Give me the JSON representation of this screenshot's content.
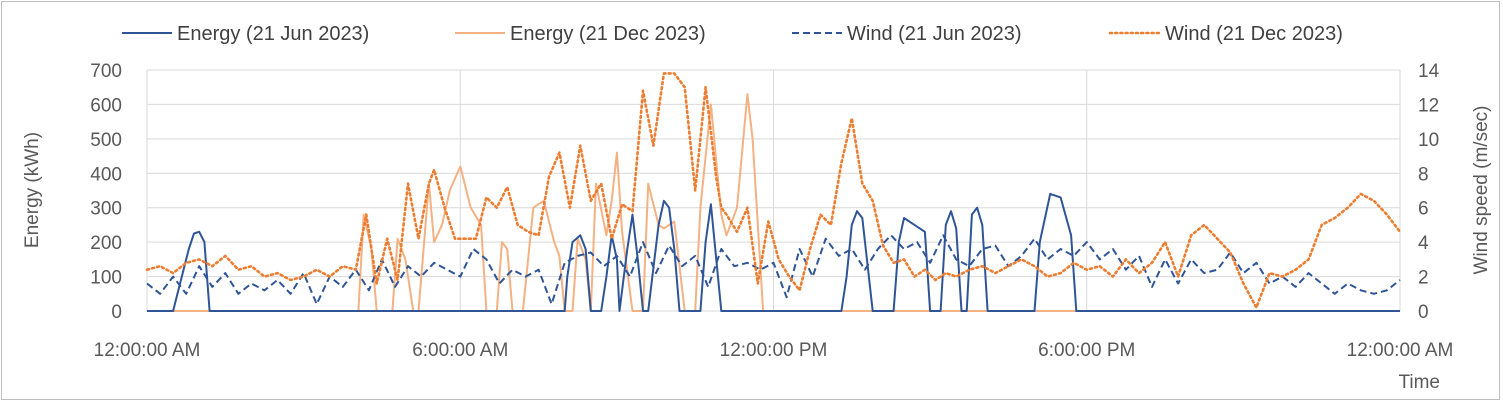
{
  "chart_data": {
    "type": "line",
    "xlabel": "Time",
    "ylabel": "Energy (kWh)",
    "y2label": "Wind speed (m/sec)",
    "x_tick_labels": [
      "12:00:00 AM",
      "6:00:00 AM",
      "12:00:00 PM",
      "6:00:00 PM",
      "12:00:00 AM"
    ],
    "x_tick_hours": [
      0,
      6,
      12,
      18,
      24
    ],
    "ylim": [
      0,
      700
    ],
    "y_ticks": [
      0,
      100,
      200,
      300,
      400,
      500,
      600,
      700
    ],
    "y2lim": [
      0,
      14
    ],
    "y2_ticks": [
      0,
      2,
      4,
      6,
      8,
      10,
      12,
      14
    ],
    "grid": true,
    "legend_position": "top",
    "series": [
      {
        "name": "Energy (21 Jun 2023)",
        "axis": "left",
        "color": "#2f5597",
        "style": "solid",
        "x": [
          0,
          0.5,
          0.8,
          0.9,
          1.0,
          1.1,
          1.2,
          8.0,
          8.05,
          8.15,
          8.3,
          8.4,
          8.5,
          8.7,
          8.8,
          8.9,
          9.0,
          9.05,
          9.2,
          9.3,
          9.4,
          9.5,
          9.6,
          9.8,
          9.9,
          10.0,
          10.1,
          10.2,
          10.4,
          10.6,
          10.7,
          10.8,
          11.0,
          11.3,
          11.4,
          11.5,
          11.6,
          11.7,
          12.8,
          12.9,
          13.0,
          13.1,
          13.3,
          13.4,
          13.5,
          13.6,
          13.7,
          13.9,
          14.1,
          14.3,
          14.4,
          14.5,
          14.7,
          14.9,
          15.0,
          15.2,
          15.3,
          15.4,
          15.5,
          15.6,
          15.7,
          15.8,
          15.9,
          16.0,
          16.1,
          16.2,
          16.3,
          16.6,
          16.8,
          17.0,
          17.1,
          17.3,
          17.5,
          17.7,
          17.8,
          17.9,
          18.0,
          18.4,
          18.5,
          18.6,
          18.7,
          19.1,
          19.2,
          19.3,
          19.4,
          24
        ],
        "y": [
          0,
          0,
          180,
          225,
          230,
          200,
          0,
          0,
          100,
          200,
          220,
          180,
          0,
          0,
          100,
          220,
          150,
          0,
          180,
          280,
          150,
          0,
          0,
          250,
          320,
          300,
          180,
          0,
          0,
          0,
          200,
          310,
          0,
          0,
          0,
          0,
          0,
          0,
          0,
          0,
          0,
          0,
          0,
          100,
          250,
          290,
          270,
          0,
          0,
          0,
          200,
          270,
          250,
          230,
          0,
          0,
          250,
          290,
          240,
          0,
          0,
          280,
          300,
          250,
          0,
          0,
          0,
          0,
          0,
          0,
          200,
          340,
          330,
          220,
          0,
          0,
          0,
          0,
          0,
          0,
          0,
          0,
          0,
          0,
          0,
          0
        ],
        "y_": [
          0,
          0,
          180,
          225,
          230,
          200,
          0,
          0,
          100,
          200,
          220,
          180,
          0,
          0,
          100,
          220,
          150,
          0,
          180,
          280,
          150,
          0,
          0,
          250,
          320,
          300,
          180,
          0,
          0,
          0,
          200,
          310,
          0,
          0,
          0,
          0,
          0,
          0,
          0,
          0,
          0,
          0,
          0,
          100,
          250,
          290,
          270,
          0,
          0,
          0,
          200,
          270,
          250,
          230,
          0,
          0,
          250,
          290,
          240,
          0,
          0,
          280,
          300,
          250,
          0,
          0,
          0,
          0,
          0,
          0,
          200,
          340,
          330,
          220,
          0,
          0,
          0,
          0,
          0,
          0,
          0,
          0,
          0,
          0,
          0,
          0
        ]
      },
      {
        "name": "Energy (21 Dec 2023)",
        "axis": "left",
        "color": "#f4b183",
        "style": "solid",
        "x": [
          0,
          4.05,
          4.15,
          4.3,
          4.4,
          4.7,
          4.8,
          4.95,
          5.1,
          5.2,
          5.4,
          5.5,
          5.65,
          5.8,
          6.0,
          6.2,
          6.4,
          6.5,
          6.7,
          6.8,
          6.9,
          7.0,
          7.2,
          7.4,
          7.6,
          7.8,
          7.9,
          8.0,
          8.15,
          8.25,
          8.4,
          8.5,
          8.6,
          8.8,
          8.9,
          9.0,
          9.1,
          9.3,
          9.5,
          9.6,
          9.8,
          9.9,
          10.1,
          10.3,
          10.5,
          10.6,
          10.8,
          11.0,
          11.1,
          11.3,
          11.5,
          11.6,
          11.8,
          12.1,
          12.3,
          12.4,
          12.5,
          12.7,
          12.8,
          13.0,
          13.1,
          13.2,
          13.6,
          13.8,
          14.0,
          14.1,
          14.3,
          14.5,
          14.6,
          14.8,
          15.0,
          15.2,
          15.4,
          15.6,
          15.7,
          15.9,
          16.0,
          16.2,
          16.3,
          24
        ],
        "y": [
          0,
          0,
          280,
          180,
          0,
          0,
          210,
          150,
          0,
          0,
          370,
          200,
          250,
          350,
          420,
          300,
          250,
          0,
          0,
          200,
          180,
          0,
          0,
          300,
          320,
          200,
          160,
          0,
          0,
          210,
          150,
          0,
          370,
          220,
          320,
          460,
          230,
          0,
          0,
          370,
          250,
          240,
          260,
          0,
          0,
          300,
          600,
          280,
          220,
          300,
          630,
          500,
          0,
          0,
          0,
          0,
          0,
          0,
          0,
          0,
          0,
          0,
          0,
          0,
          0,
          0,
          0,
          0,
          0,
          0,
          0,
          0,
          0,
          0,
          0,
          0,
          0,
          0,
          0,
          0
        ]
      },
      {
        "name": "Wind (21 Jun 2023)",
        "axis": "right",
        "color": "#2f5597",
        "style": "dashed",
        "x": [
          0,
          0.25,
          0.5,
          0.75,
          1.0,
          1.25,
          1.5,
          1.75,
          2.0,
          2.25,
          2.5,
          2.75,
          3.0,
          3.25,
          3.5,
          3.75,
          4.0,
          4.25,
          4.5,
          4.75,
          5.0,
          5.25,
          5.5,
          5.75,
          6.0,
          6.25,
          6.5,
          6.75,
          7.0,
          7.25,
          7.5,
          7.75,
          8.0,
          8.25,
          8.5,
          8.75,
          9.0,
          9.25,
          9.5,
          9.75,
          10.0,
          10.25,
          10.5,
          10.75,
          11.0,
          11.25,
          11.5,
          11.75,
          12.0,
          12.25,
          12.5,
          12.75,
          13.0,
          13.25,
          13.5,
          13.75,
          14.0,
          14.25,
          14.5,
          14.75,
          15.0,
          15.25,
          15.5,
          15.75,
          16.0,
          16.25,
          16.5,
          16.75,
          17.0,
          17.25,
          17.5,
          17.75,
          18.0,
          18.25,
          18.5,
          18.75,
          19.0,
          19.25,
          19.5,
          19.75,
          20.0,
          20.25,
          20.5,
          20.75,
          21.0,
          21.25,
          21.5,
          21.75,
          22.0,
          22.25,
          22.5,
          22.75,
          23.0,
          23.25,
          23.5,
          23.75,
          24.0
        ],
        "y": [
          1.6,
          1.0,
          2.0,
          1.0,
          2.6,
          1.4,
          2.2,
          1.0,
          1.6,
          1.2,
          1.8,
          1.0,
          2.2,
          0.4,
          2.0,
          1.4,
          2.4,
          1.2,
          3.0,
          1.4,
          2.6,
          2.0,
          2.8,
          2.4,
          2.0,
          3.6,
          3.0,
          1.6,
          2.4,
          2.0,
          2.4,
          0.4,
          2.8,
          3.2,
          3.4,
          2.6,
          3.2,
          2.0,
          4.0,
          2.2,
          3.8,
          2.6,
          3.2,
          1.4,
          3.6,
          2.6,
          2.8,
          2.4,
          2.8,
          0.8,
          3.6,
          2.0,
          4.2,
          3.2,
          3.6,
          2.4,
          3.6,
          4.4,
          3.6,
          4.0,
          2.8,
          4.4,
          3.0,
          2.6,
          3.6,
          3.8,
          2.6,
          3.2,
          4.2,
          3.0,
          3.6,
          3.2,
          4.0,
          3.0,
          3.6,
          2.4,
          3.2,
          1.4,
          3.0,
          1.6,
          3.0,
          2.2,
          2.4,
          3.4,
          2.2,
          2.8,
          1.6,
          2.0,
          1.4,
          2.2,
          1.6,
          1.0,
          1.6,
          1.2,
          1.0,
          1.2,
          1.8
        ]
      },
      {
        "name": "Wind (21 Dec 2023)",
        "axis": "right",
        "color": "#ed7d31",
        "style": "dotted",
        "x": [
          0,
          0.25,
          0.5,
          0.75,
          1.0,
          1.25,
          1.5,
          1.75,
          2.0,
          2.25,
          2.5,
          2.75,
          3.0,
          3.25,
          3.5,
          3.75,
          4.0,
          4.2,
          4.4,
          4.6,
          4.8,
          5.0,
          5.2,
          5.4,
          5.5,
          5.7,
          5.9,
          6.1,
          6.3,
          6.5,
          6.7,
          6.9,
          7.1,
          7.3,
          7.5,
          7.7,
          7.9,
          8.1,
          8.3,
          8.5,
          8.7,
          8.9,
          9.1,
          9.3,
          9.5,
          9.7,
          9.9,
          10.1,
          10.3,
          10.5,
          10.7,
          10.9,
          11.0,
          11.1,
          11.3,
          11.5,
          11.7,
          11.9,
          12.1,
          12.3,
          12.5,
          12.7,
          12.9,
          13.1,
          13.3,
          13.5,
          13.7,
          13.9,
          14.1,
          14.3,
          14.5,
          14.7,
          14.9,
          15.1,
          15.3,
          15.5,
          15.75,
          16.0,
          16.25,
          16.5,
          16.75,
          17.0,
          17.25,
          17.5,
          17.75,
          18.0,
          18.25,
          18.5,
          18.75,
          19.0,
          19.25,
          19.5,
          19.75,
          20.0,
          20.25,
          20.5,
          20.75,
          21.0,
          21.25,
          21.5,
          21.75,
          22.0,
          22.25,
          22.5,
          22.75,
          23.0,
          23.25,
          23.5,
          23.75,
          24.0
        ],
        "y": [
          2.4,
          2.6,
          2.2,
          2.8,
          3.0,
          2.6,
          3.2,
          2.4,
          2.6,
          2.0,
          2.2,
          1.8,
          2.0,
          2.4,
          2.0,
          2.6,
          2.4,
          5.6,
          1.6,
          4.2,
          1.8,
          7.4,
          4.2,
          7.4,
          8.2,
          6.0,
          4.2,
          4.2,
          4.2,
          6.6,
          6.0,
          7.2,
          5.0,
          4.6,
          4.4,
          7.8,
          9.2,
          6.0,
          9.6,
          6.4,
          7.4,
          4.2,
          6.2,
          5.8,
          12.8,
          9.6,
          13.8,
          13.8,
          13.0,
          7.0,
          13.0,
          7.8,
          6.0,
          5.6,
          4.6,
          6.0,
          1.6,
          5.2,
          3.0,
          2.0,
          1.2,
          3.6,
          5.6,
          5.0,
          8.6,
          11.2,
          7.4,
          6.4,
          3.8,
          2.8,
          3.0,
          2.0,
          2.4,
          1.8,
          2.2,
          2.0,
          2.4,
          2.6,
          2.2,
          2.6,
          3.0,
          2.6,
          2.0,
          2.2,
          2.8,
          2.4,
          2.6,
          2.0,
          3.0,
          2.2,
          2.8,
          4.0,
          2.0,
          4.4,
          5.0,
          4.2,
          3.4,
          1.6,
          0.2,
          2.2,
          2.0,
          2.4,
          3.0,
          5.0,
          5.4,
          6.0,
          6.8,
          6.4,
          5.6,
          4.6
        ]
      }
    ]
  }
}
